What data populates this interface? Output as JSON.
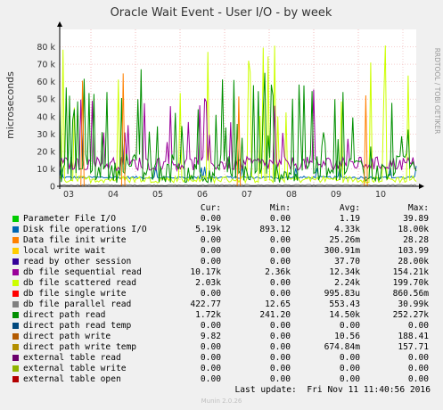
{
  "chart_data": {
    "type": "line",
    "title": "Oracle Wait Event - User I/O - by week",
    "ylabel": "microseconds",
    "side_label": "RRDTOOL / TOBI OETIKER",
    "ylim": [
      0,
      90000
    ],
    "y_ticks": [
      {
        "value": 0,
        "label": "0"
      },
      {
        "value": 10000,
        "label": "10 k"
      },
      {
        "value": 20000,
        "label": "20 k"
      },
      {
        "value": 30000,
        "label": "30 k"
      },
      {
        "value": 40000,
        "label": "40 k"
      },
      {
        "value": 50000,
        "label": "50 k"
      },
      {
        "value": 60000,
        "label": "60 k"
      },
      {
        "value": 70000,
        "label": "70 k"
      },
      {
        "value": 80000,
        "label": "80 k"
      }
    ],
    "x_ticks": [
      "03",
      "04",
      "05",
      "06",
      "07",
      "08",
      "09",
      "10"
    ],
    "x_day_range": [
      2.8,
      10.8
    ],
    "grid": true,
    "series": [
      {
        "name": "Parameter File I/O",
        "color": "#00cc00",
        "cur": "0.00",
        "min": "0.00",
        "avg": "1.19",
        "max": "39.89"
      },
      {
        "name": "Disk file operations I/O",
        "color": "#0066b3",
        "cur": "5.19k",
        "min": "893.12",
        "avg": "4.33k",
        "max": "18.00k"
      },
      {
        "name": "Data file init write",
        "color": "#ff8000",
        "cur": "0.00",
        "min": "0.00",
        "avg": "25.26m",
        "max": "28.28"
      },
      {
        "name": "local write wait",
        "color": "#ffcc00",
        "cur": "0.00",
        "min": "0.00",
        "avg": "300.91m",
        "max": "103.99"
      },
      {
        "name": "read by other session",
        "color": "#330099",
        "cur": "0.00",
        "min": "0.00",
        "avg": "37.70",
        "max": "28.00k"
      },
      {
        "name": "db file sequential read",
        "color": "#990099",
        "cur": "10.17k",
        "min": "2.36k",
        "avg": "12.34k",
        "max": "154.21k"
      },
      {
        "name": "db file scattered read",
        "color": "#ccff00",
        "cur": "2.03k",
        "min": "0.00",
        "avg": "2.24k",
        "max": "199.70k"
      },
      {
        "name": "db file single write",
        "color": "#ff0000",
        "cur": "0.00",
        "min": "0.00",
        "avg": "995.83u",
        "max": "860.56m"
      },
      {
        "name": "db file parallel read",
        "color": "#808080",
        "cur": "422.77",
        "min": "12.65",
        "avg": "553.43",
        "max": "30.99k"
      },
      {
        "name": "direct path read",
        "color": "#008f00",
        "cur": "1.72k",
        "min": "241.20",
        "avg": "14.50k",
        "max": "252.27k"
      },
      {
        "name": "direct path read temp",
        "color": "#00487d",
        "cur": "0.00",
        "min": "0.00",
        "avg": "0.00",
        "max": "0.00"
      },
      {
        "name": "direct path write",
        "color": "#b35a00",
        "cur": "9.82",
        "min": "0.00",
        "avg": "10.56",
        "max": "188.41"
      },
      {
        "name": "direct path write temp",
        "color": "#b38f00",
        "cur": "0.00",
        "min": "0.00",
        "avg": "674.84m",
        "max": "157.71"
      },
      {
        "name": "external table read",
        "color": "#6b006b",
        "cur": "0.00",
        "min": "0.00",
        "avg": "0.00",
        "max": "0.00"
      },
      {
        "name": "external table write",
        "color": "#8fb300",
        "cur": "0.00",
        "min": "0.00",
        "avg": "0.00",
        "max": "0.00"
      },
      {
        "name": "external table open",
        "color": "#b30000",
        "cur": "0.00",
        "min": "0.00",
        "avg": "0.00",
        "max": "0.00"
      }
    ]
  },
  "legend_headers": {
    "cur": "Cur:",
    "min": "Min:",
    "avg": "Avg:",
    "max": "Max:"
  },
  "last_update": "Last update:  Fri Nov 11 11:40:56 2016",
  "munin_version": "Munin 2.0.26"
}
